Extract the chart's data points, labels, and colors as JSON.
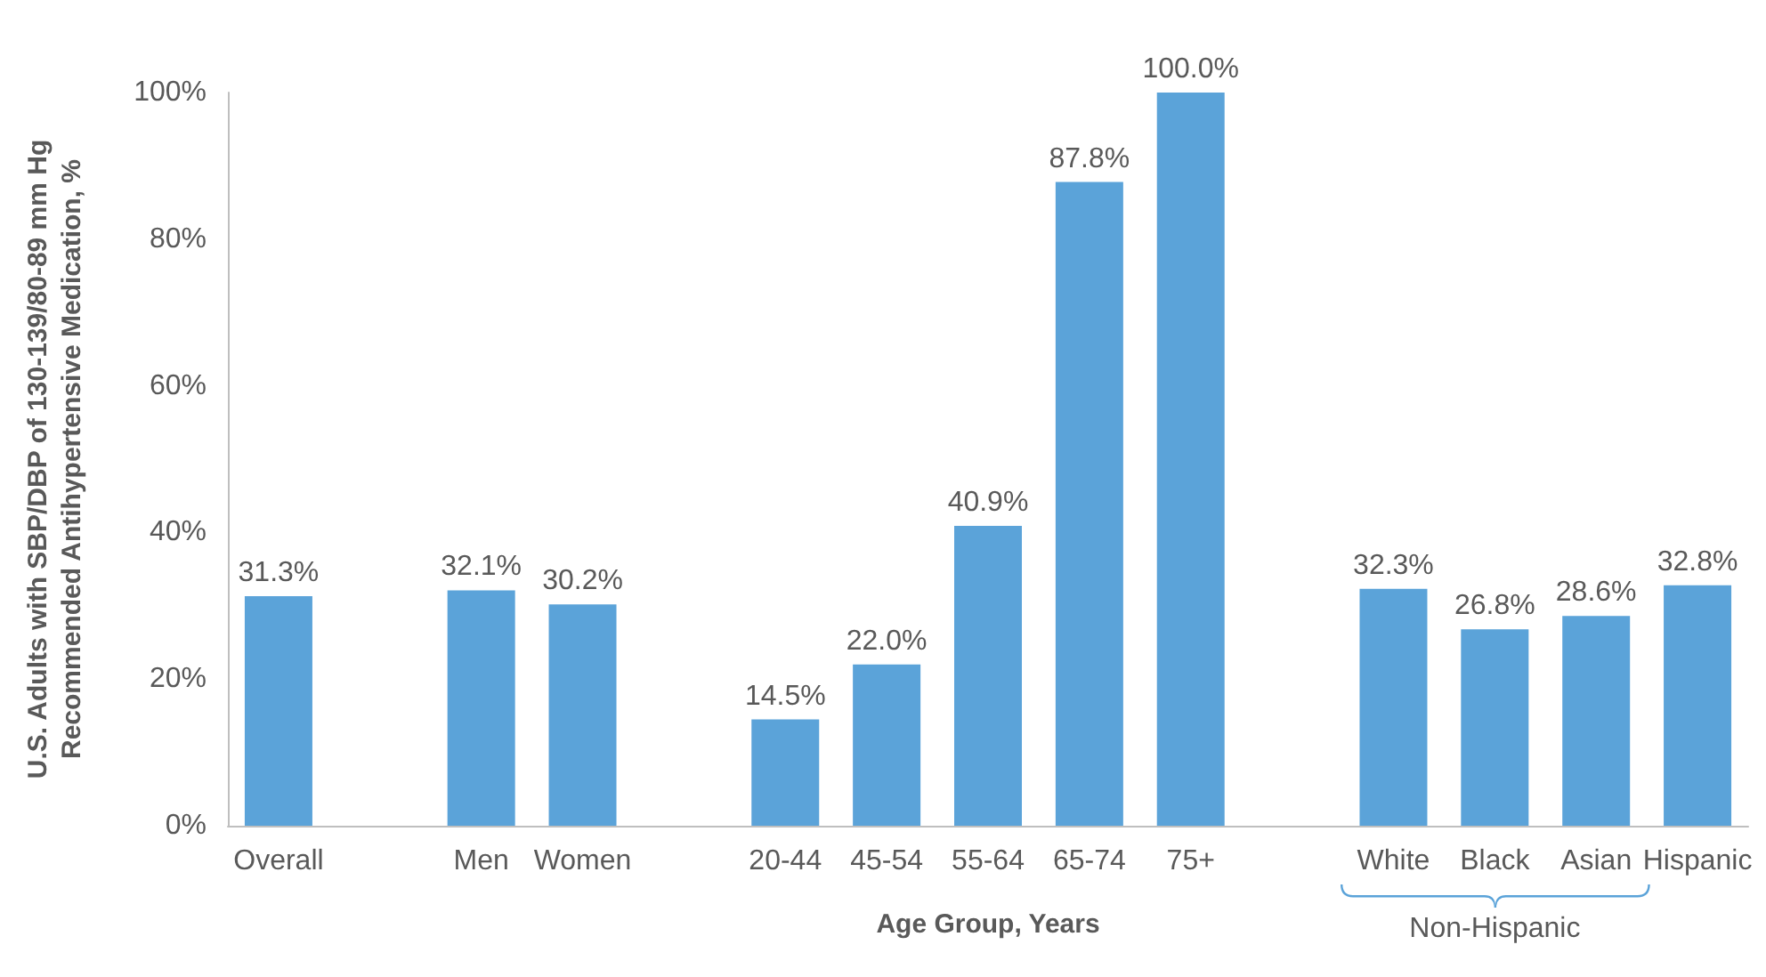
{
  "chart_data": {
    "type": "bar",
    "xlabel": "Age Group, Years",
    "ylabel": "U.S. Adults with SBP/DBP of 130-139/80-89 mm Hg\nRecommended Antihypertensive Medication, %",
    "categories": [
      "Overall",
      null,
      "Men",
      "Women",
      null,
      "20-44",
      "45-54",
      "55-64",
      "65-74",
      "75+",
      null,
      "White",
      "Black",
      "Asian",
      "Hispanic"
    ],
    "values": [
      31.3,
      null,
      32.1,
      30.2,
      null,
      14.5,
      22.0,
      40.9,
      87.8,
      100.0,
      null,
      32.3,
      26.8,
      28.6,
      32.8
    ],
    "value_labels": [
      "31.3%",
      null,
      "32.1%",
      "30.2%",
      null,
      "14.5%",
      "22.0%",
      "40.9%",
      "87.8%",
      "100.0%",
      null,
      "32.3%",
      "26.8%",
      "28.6%",
      "32.8%"
    ],
    "color": "#5ba3d9",
    "ylim": [
      0,
      100
    ],
    "yticks": [
      {
        "value": 0,
        "label": "0%"
      },
      {
        "value": 20,
        "label": "20%"
      },
      {
        "value": 40,
        "label": "40%"
      },
      {
        "value": 60,
        "label": "60%"
      },
      {
        "value": 80,
        "label": "80%"
      },
      {
        "value": 100,
        "label": "100%"
      }
    ],
    "annotations": [
      "Non-Hispanic"
    ],
    "grid": false
  }
}
